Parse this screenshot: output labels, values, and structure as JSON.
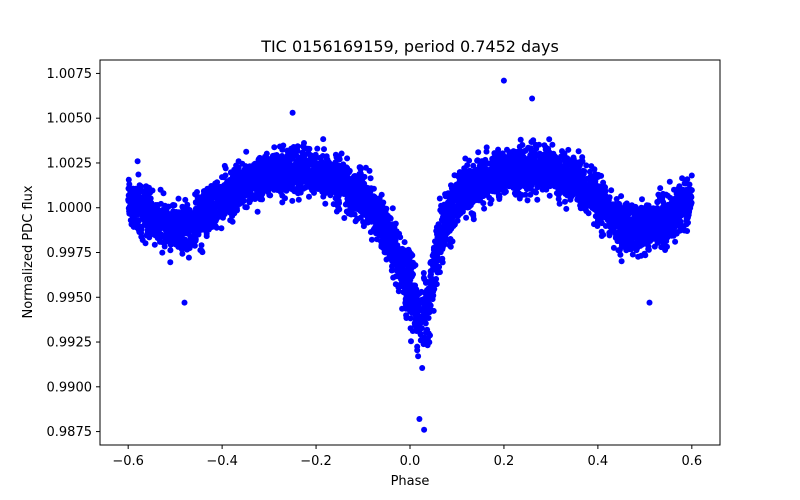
{
  "chart_data": {
    "type": "scatter",
    "title": "TIC 0156169159, period 0.7452 days",
    "xlabel": "Phase",
    "ylabel": "Normalized PDC flux",
    "xlim": [
      -0.66,
      0.66
    ],
    "ylim": [
      0.98675,
      1.00825
    ],
    "xticks": [
      -0.6,
      -0.4,
      -0.2,
      0.0,
      0.2,
      0.4,
      0.6
    ],
    "xtick_labels": [
      "−0.6",
      "−0.4",
      "−0.2",
      "0.0",
      "0.2",
      "0.4",
      "0.6"
    ],
    "yticks": [
      0.9875,
      0.99,
      0.9925,
      0.995,
      0.9975,
      1.0,
      1.0025,
      1.005,
      1.0075
    ],
    "ytick_labels": [
      "0.9875",
      "0.9900",
      "0.9925",
      "0.9950",
      "0.9975",
      "1.0000",
      "1.0025",
      "1.0050",
      "1.0075"
    ],
    "marker_color": "#0000ff",
    "series": [
      {
        "name": "PDC flux",
        "profile": {
          "phase": [
            -0.6,
            -0.55,
            -0.5,
            -0.45,
            -0.4,
            -0.35,
            -0.3,
            -0.25,
            -0.2,
            -0.15,
            -0.1,
            -0.06,
            -0.03,
            0.0,
            0.02,
            0.04,
            0.06,
            0.1,
            0.15,
            0.2,
            0.25,
            0.3,
            0.35,
            0.4,
            0.45,
            0.5,
            0.55,
            0.6
          ],
          "median_flux": [
            1.0005,
            0.9995,
            0.9988,
            0.9992,
            1.0005,
            1.0013,
            1.0018,
            1.002,
            1.0019,
            1.0015,
            1.0005,
            0.999,
            0.9975,
            0.9955,
            0.994,
            0.9945,
            0.998,
            1.0005,
            1.0015,
            1.002,
            1.0022,
            1.002,
            1.0015,
            1.0005,
            0.999,
            0.9988,
            0.9993,
            1.0005
          ],
          "scatter": [
            0.001,
            0.001,
            0.0011,
            0.0011,
            0.001,
            0.001,
            0.001,
            0.001,
            0.001,
            0.001,
            0.0011,
            0.0012,
            0.0014,
            0.0018,
            0.0018,
            0.0016,
            0.0013,
            0.0011,
            0.001,
            0.001,
            0.001,
            0.001,
            0.001,
            0.001,
            0.0011,
            0.0011,
            0.001,
            0.001
          ]
        },
        "outliers": [
          {
            "x": 0.2,
            "y": 1.0071
          },
          {
            "x": 0.26,
            "y": 1.0061
          },
          {
            "x": -0.25,
            "y": 1.0053
          },
          {
            "x": 0.03,
            "y": 0.9876
          },
          {
            "x": 0.02,
            "y": 0.9882
          },
          {
            "x": -0.48,
            "y": 0.9947
          },
          {
            "x": 0.51,
            "y": 0.9947
          },
          {
            "x": -0.58,
            "y": 1.0026
          },
          {
            "x": 0.6,
            "y": 1.0018
          }
        ]
      }
    ]
  }
}
